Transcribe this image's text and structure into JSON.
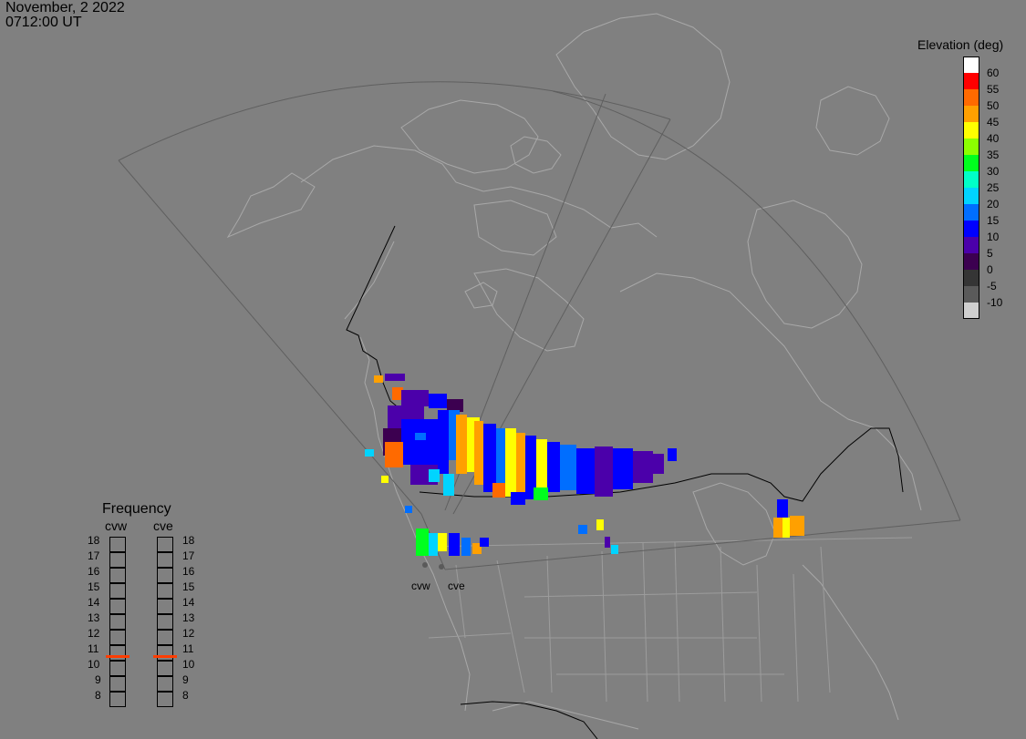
{
  "header": {
    "date": "November, 2 2022",
    "time": "0712:00 UT"
  },
  "colorbar": {
    "title": "Elevation (deg)",
    "entries": [
      {
        "label": "60",
        "color": "#ffffff"
      },
      {
        "label": "55",
        "color": "#ff0000"
      },
      {
        "label": "50",
        "color": "#ff6a00"
      },
      {
        "label": "45",
        "color": "#ffa000"
      },
      {
        "label": "40",
        "color": "#ffff00"
      },
      {
        "label": "35",
        "color": "#8cff00"
      },
      {
        "label": "30",
        "color": "#00ff1e"
      },
      {
        "label": "25",
        "color": "#00ffc8"
      },
      {
        "label": "20",
        "color": "#00d4ff"
      },
      {
        "label": "15",
        "color": "#006eff"
      },
      {
        "label": "10",
        "color": "#0000ff"
      },
      {
        "label": "5",
        "color": "#4b00aa"
      },
      {
        "label": "0",
        "color": "#3c0050"
      },
      {
        "label": "-5",
        "color": "#353535"
      },
      {
        "label": "-10",
        "color": "#5a5a5a"
      },
      {
        "label": "",
        "color": "#cfcfcf"
      }
    ]
  },
  "frequency": {
    "title": "Frequency",
    "radars": [
      {
        "name": "cvw",
        "selected_mhz": 10.8
      },
      {
        "name": "cve",
        "selected_mhz": 10.8
      }
    ],
    "scale": [
      "18",
      "17",
      "16",
      "15",
      "14",
      "13",
      "12",
      "11",
      "10",
      "9",
      "8"
    ],
    "marker_color": "#ff3d00"
  },
  "sites": [
    {
      "name": "cvw"
    },
    {
      "name": "cve"
    }
  ],
  "colors": {
    "background": "#808080",
    "map_lines": "#a6a6a6",
    "fov_lines": "#5a5a5a",
    "border_lines": "#000000"
  }
}
